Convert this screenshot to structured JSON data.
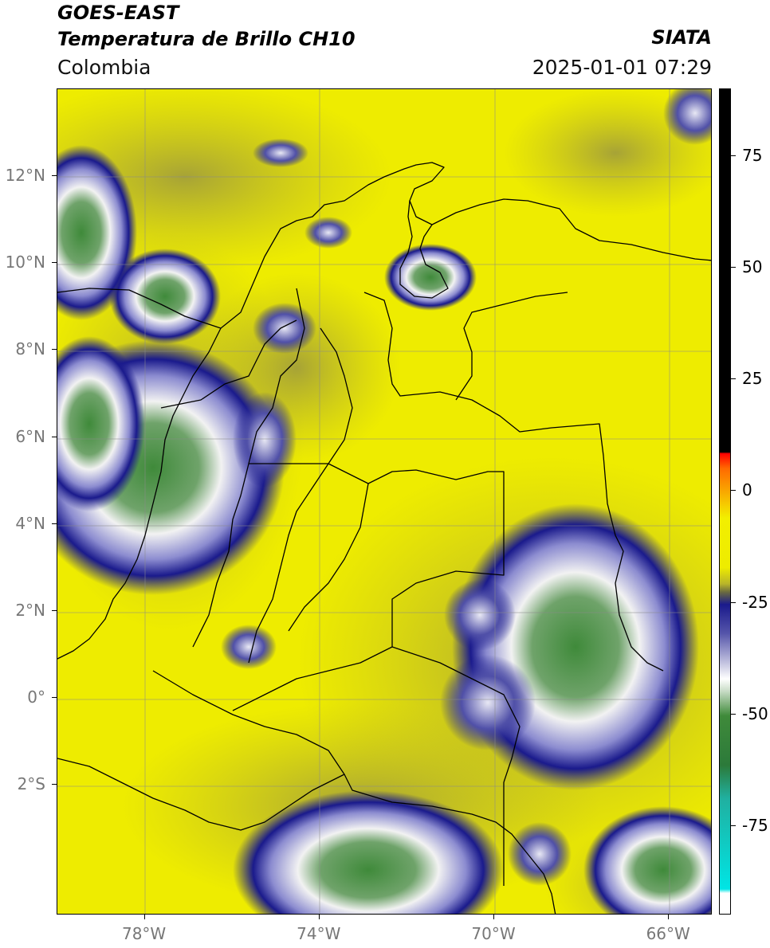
{
  "header": {
    "satellite": "GOES-EAST",
    "product": "Temperatura de Brillo CH10",
    "region": "Colombia",
    "brand": "SIATA",
    "timestamp": "2025-01-01 07:29"
  },
  "map": {
    "extent_lon": [
      -80,
      -65
    ],
    "extent_lat": [
      -5,
      14
    ],
    "lat_ticks": [
      {
        "value": 12,
        "label": "12°N"
      },
      {
        "value": 10,
        "label": "10°N"
      },
      {
        "value": 8,
        "label": "8°N"
      },
      {
        "value": 6,
        "label": "6°N"
      },
      {
        "value": 4,
        "label": "4°N"
      },
      {
        "value": 2,
        "label": "2°N"
      },
      {
        "value": 0,
        "label": "0°"
      },
      {
        "value": -2,
        "label": "2°S"
      }
    ],
    "lon_ticks": [
      {
        "value": -78,
        "label": "78°W"
      },
      {
        "value": -74,
        "label": "74°W"
      },
      {
        "value": -70,
        "label": "70°W"
      },
      {
        "value": -66,
        "label": "66°W"
      }
    ],
    "grid": true,
    "colors": {
      "warm": "#f2ef00",
      "warm_dark": "#c8c31a",
      "cloud_blue": "#1a1a8c",
      "cloud_white": "#f2f2f2",
      "cloud_green": "#3f8a3a"
    }
  },
  "colorbar": {
    "range": [
      -95,
      90
    ],
    "ticks": [
      {
        "value": 75,
        "label": "75"
      },
      {
        "value": 50,
        "label": "50"
      },
      {
        "value": 25,
        "label": "25"
      },
      {
        "value": 0,
        "label": "0"
      },
      {
        "value": -25,
        "label": "-25"
      },
      {
        "value": -50,
        "label": "-50"
      },
      {
        "value": -75,
        "label": "-75"
      }
    ]
  }
}
